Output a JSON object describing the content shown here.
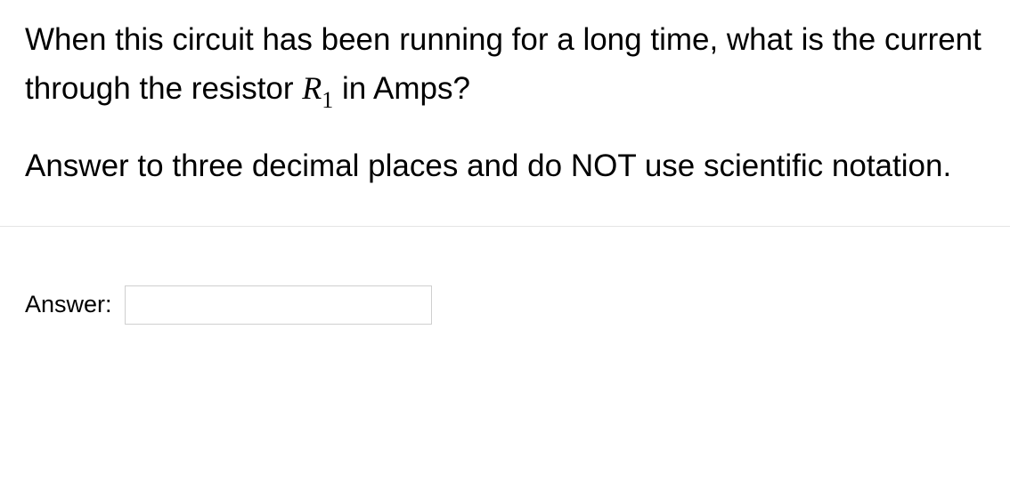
{
  "question": {
    "text_before_math": "When this circuit has been running for a long time, what is the current through the resistor ",
    "math_var": "R",
    "math_sub": "1",
    "text_after_math": " in Amps?"
  },
  "instruction": "Answer to three decimal places and do NOT use scientific notation.",
  "answer": {
    "label": "Answer:",
    "value": ""
  },
  "styles": {
    "body_font_size": 35,
    "label_font_size": 27,
    "text_color": "#000000",
    "divider_color": "#e5e5e5",
    "input_border_color": "#cfcfcf",
    "input_width": 345,
    "input_height": 44,
    "background_color": "#ffffff"
  }
}
